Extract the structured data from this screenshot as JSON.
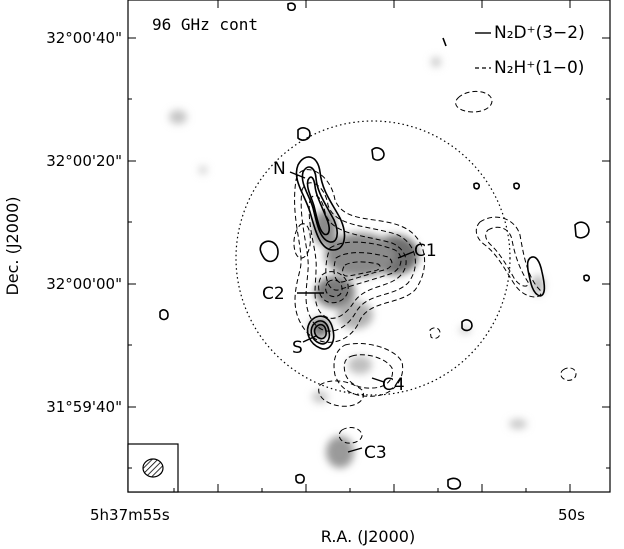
{
  "panel_label": "96 GHz cont",
  "legend": [
    {
      "label": "N₂D⁺(3−2)",
      "style": "solid"
    },
    {
      "label": "N₂H⁺(1−0)",
      "style": "dashed"
    }
  ],
  "axes": {
    "xlabel": "R.A. (J2000)",
    "ylabel": "Dec. (J2000)",
    "x_ticks": [
      "5h37m55s",
      "50s"
    ],
    "y_ticks": [
      "32°00'40\"",
      "32°00'20\"",
      "32°00'00\"",
      "31°59'40\""
    ]
  },
  "sources": [
    {
      "name": "N"
    },
    {
      "name": "C1"
    },
    {
      "name": "C2"
    },
    {
      "name": "S"
    },
    {
      "name": "C4"
    },
    {
      "name": "C3"
    }
  ],
  "colors": {
    "contour": "#000000",
    "continuum": "#a8a8a8"
  }
}
